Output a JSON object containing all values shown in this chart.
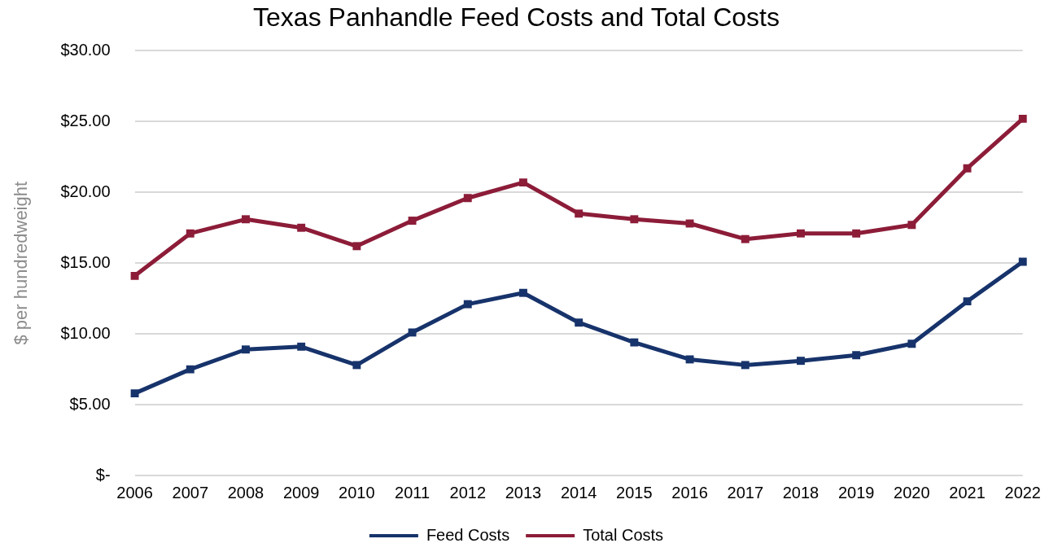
{
  "chart_data": {
    "type": "line",
    "title": "Texas Panhandle Feed Costs and Total Costs",
    "ylabel": "$ per hundredweight",
    "categories": [
      "2006",
      "2007",
      "2008",
      "2009",
      "2010",
      "2011",
      "2012",
      "2013",
      "2014",
      "2015",
      "2016",
      "2017",
      "2018",
      "2019",
      "2020",
      "2021",
      "2022"
    ],
    "series": [
      {
        "name": "Feed Costs",
        "color": "#17336b",
        "values": [
          5.8,
          7.5,
          8.9,
          9.1,
          7.8,
          10.1,
          12.1,
          12.9,
          10.8,
          9.4,
          8.2,
          7.8,
          8.1,
          8.5,
          9.3,
          12.3,
          15.1
        ]
      },
      {
        "name": "Total Costs",
        "color": "#8c1c38",
        "values": [
          14.1,
          17.1,
          18.1,
          17.5,
          16.2,
          18.0,
          19.6,
          20.7,
          18.5,
          18.1,
          17.8,
          16.7,
          17.1,
          17.1,
          17.7,
          21.7,
          25.2
        ]
      }
    ],
    "ylim": [
      0,
      30
    ],
    "yticks": [
      {
        "value": 0,
        "label": "$-"
      },
      {
        "value": 5,
        "label": "$5.00"
      },
      {
        "value": 10,
        "label": "$10.00"
      },
      {
        "value": 15,
        "label": "$15.00"
      },
      {
        "value": 20,
        "label": "$20.00"
      },
      {
        "value": 25,
        "label": "$25.00"
      },
      {
        "value": 30,
        "label": "$30.00"
      }
    ],
    "grid": "y",
    "legend": "bottom",
    "marker": "square",
    "line_style": "solid"
  }
}
